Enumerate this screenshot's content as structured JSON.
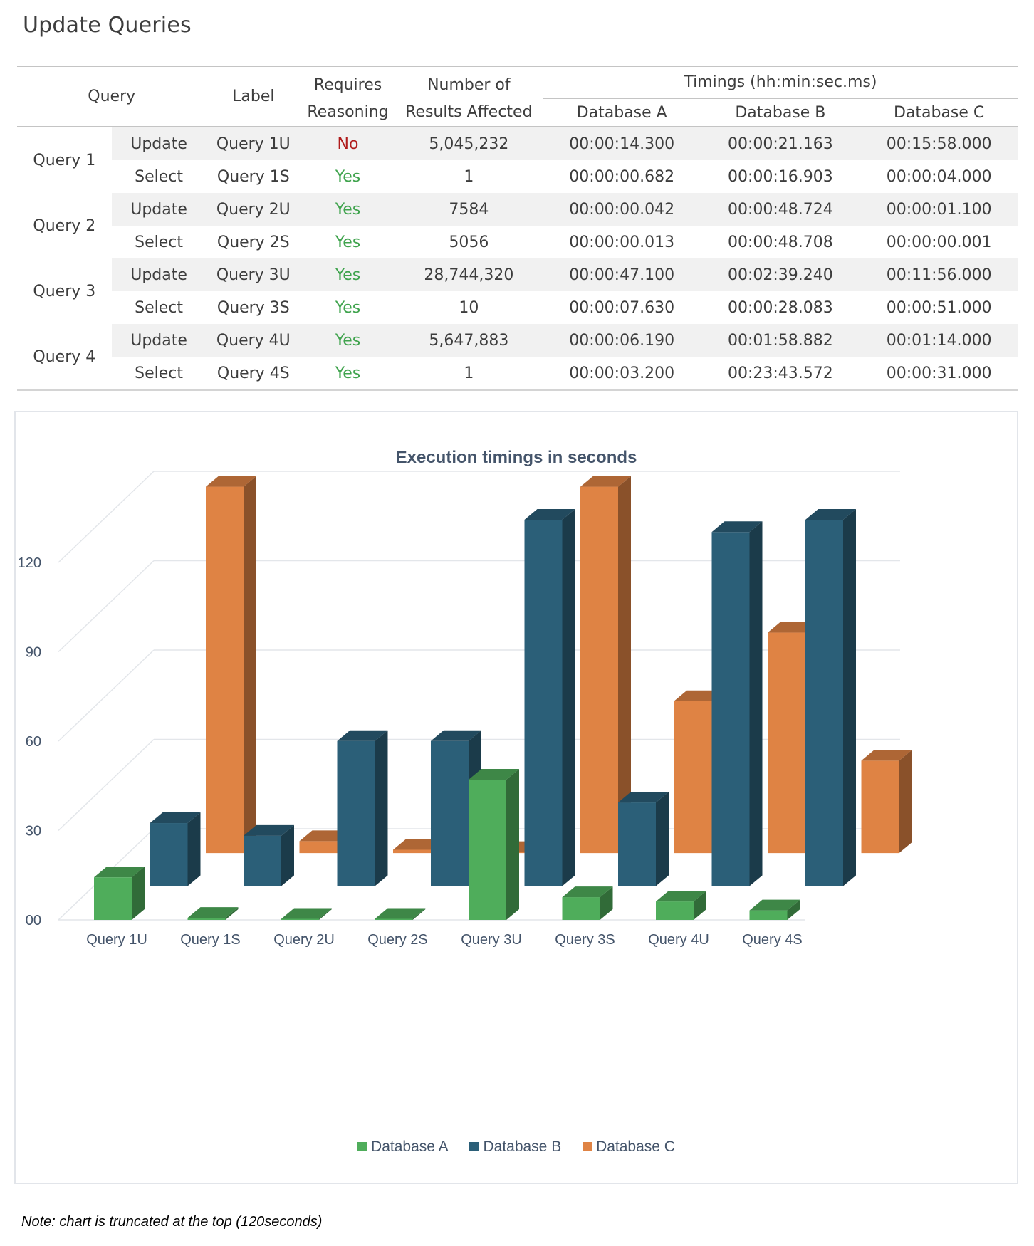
{
  "page": {
    "title": "Update Queries",
    "note": "Note: chart is truncated at the top (120seconds)"
  },
  "table": {
    "headers": {
      "query": "Query",
      "label": "Label",
      "requires_reasoning": "Requires Reasoning",
      "requires_reasoning_line1": "Requires",
      "requires_reasoning_line2": "Reasoning",
      "results_affected_line1": "Number of",
      "results_affected_line2": "Results Affected",
      "timings": "Timings (hh:min:sec.ms)",
      "db_a": "Database A",
      "db_b": "Database B",
      "db_c": "Database C"
    },
    "groups": [
      {
        "name": "Query 1",
        "rows": [
          {
            "type": "Update",
            "label": "Query 1U",
            "reasoning": "No",
            "affected": "5,045,232",
            "a": "00:00:14.300",
            "b": "00:00:21.163",
            "c": "00:15:58.000"
          },
          {
            "type": "Select",
            "label": "Query 1S",
            "reasoning": "Yes",
            "affected": "1",
            "a": "00:00:00.682",
            "b": "00:00:16.903",
            "c": "00:00:04.000"
          }
        ]
      },
      {
        "name": "Query 2",
        "rows": [
          {
            "type": "Update",
            "label": "Query 2U",
            "reasoning": "Yes",
            "affected": "7584",
            "a": "00:00:00.042",
            "b": "00:00:48.724",
            "c": "00:00:01.100"
          },
          {
            "type": "Select",
            "label": "Query 2S",
            "reasoning": "Yes",
            "affected": "5056",
            "a": "00:00:00.013",
            "b": "00:00:48.708",
            "c": "00:00:00.001"
          }
        ]
      },
      {
        "name": "Query 3",
        "rows": [
          {
            "type": "Update",
            "label": "Query 3U",
            "reasoning": "Yes",
            "affected": "28,744,320",
            "a": "00:00:47.100",
            "b": "00:02:39.240",
            "c": "00:11:56.000"
          },
          {
            "type": "Select",
            "label": "Query 3S",
            "reasoning": "Yes",
            "affected": "10",
            "a": "00:00:07.630",
            "b": "00:00:28.083",
            "c": "00:00:51.000"
          }
        ]
      },
      {
        "name": "Query 4",
        "rows": [
          {
            "type": "Update",
            "label": "Query 4U",
            "reasoning": "Yes",
            "affected": "5,647,883",
            "a": "00:00:06.190",
            "b": "00:01:58.882",
            "c": "00:01:14.000"
          },
          {
            "type": "Select",
            "label": "Query 4S",
            "reasoning": "Yes",
            "affected": "1",
            "a": "00:00:03.200",
            "b": "00:23:43.572",
            "c": "00:00:31.000"
          }
        ]
      }
    ]
  },
  "colors": {
    "yes": "#3fa34d",
    "no": "#b01c1c",
    "db_a": "#4fad5b",
    "db_b": "#2b5f78",
    "db_c": "#df8344"
  },
  "chart_data": {
    "type": "bar",
    "style": "3d-column",
    "title": "Execution timings in seconds",
    "xlabel": "",
    "ylabel": "",
    "categories": [
      "Query 1U",
      "Query 1S",
      "Query 2U",
      "Query 2S",
      "Query 3U",
      "Query 3S",
      "Query 4U",
      "Query 4S"
    ],
    "series": [
      {
        "name": "Database A",
        "color": "#4fad5b",
        "values": [
          14.3,
          0.682,
          0.042,
          0.013,
          47.1,
          7.63,
          6.19,
          3.2
        ]
      },
      {
        "name": "Database B",
        "color": "#2b5f78",
        "values": [
          21.163,
          16.903,
          48.724,
          48.708,
          159.24,
          28.083,
          118.882,
          1423.572
        ]
      },
      {
        "name": "Database C",
        "color": "#df8344",
        "values": [
          958,
          4,
          1.1,
          0.001,
          716,
          51,
          74,
          31
        ]
      }
    ],
    "ylim": [
      0,
      120
    ],
    "truncated_at": 120,
    "yticks": [
      0,
      30,
      60,
      90,
      120
    ],
    "ytick_labels": [
      "00",
      "30",
      "60",
      "90",
      "120"
    ],
    "grid": true,
    "legend": {
      "position": "bottom",
      "entries": [
        "Database A",
        "Database B",
        "Database C"
      ]
    }
  }
}
